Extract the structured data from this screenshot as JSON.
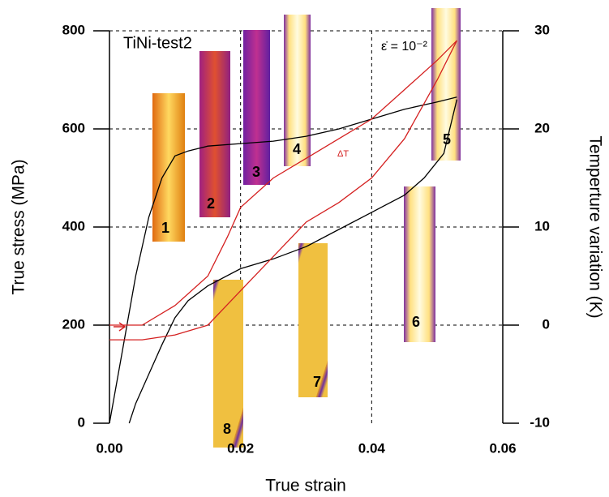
{
  "chart_data": {
    "type": "line",
    "annotations": [
      "TiNi-test2",
      "ε̇ = 10⁻²",
      "ΔT"
    ],
    "x_label": "True strain",
    "y_label": "True stress (MPa)",
    "y2_label": "Temperture variation (K)",
    "xlim": [
      0,
      0.06
    ],
    "xticks": [
      {
        "value": 0,
        "label": "0.00"
      },
      {
        "value": 0.02,
        "label": "0.02"
      },
      {
        "value": 0.04,
        "label": "0.04"
      },
      {
        "value": 0.06,
        "label": "0.06"
      }
    ],
    "ylim": [
      0,
      800
    ],
    "yticks": [
      0,
      200,
      400,
      600,
      800
    ],
    "y2lim": [
      -10,
      30
    ],
    "y2ticks": [
      -10,
      0,
      10,
      20,
      30
    ],
    "grid": true,
    "insets": [
      "1",
      "2",
      "3",
      "4",
      "5",
      "6",
      "7",
      "8"
    ],
    "series": [
      {
        "color": "#000000",
        "x": [
          0,
          0.002,
          0.004,
          0.006,
          0.008,
          0.01,
          0.012,
          0.015,
          0.02,
          0.025,
          0.03,
          0.035,
          0.04,
          0.045,
          0.05,
          0.053
        ],
        "values": [
          0,
          150,
          300,
          420,
          500,
          545,
          555,
          565,
          570,
          575,
          585,
          600,
          620,
          640,
          655,
          665
        ]
      },
      {
        "color": "#000000",
        "x": [
          0.053,
          0.051,
          0.048,
          0.045,
          0.04,
          0.035,
          0.03,
          0.025,
          0.02,
          0.015,
          0.012,
          0.01,
          0.008,
          0.006,
          0.004,
          0.003
        ],
        "values": [
          660,
          550,
          500,
          465,
          430,
          395,
          360,
          335,
          315,
          280,
          250,
          215,
          160,
          100,
          40,
          0
        ]
      },
      {
        "color": "#d42020",
        "axis": "y2",
        "x": [
          0,
          0.005,
          0.01,
          0.015,
          0.018,
          0.02,
          0.025,
          0.03,
          0.035,
          0.04,
          0.045,
          0.05,
          0.053
        ],
        "values": [
          0,
          0,
          2,
          5,
          9,
          12,
          15,
          17,
          19,
          21,
          24,
          27,
          29
        ]
      },
      {
        "color": "#d42020",
        "axis": "y2",
        "x": [
          0.053,
          0.05,
          0.045,
          0.04,
          0.035,
          0.03,
          0.025,
          0.02,
          0.015,
          0.01,
          0.005,
          0
        ],
        "values": [
          29,
          25,
          19,
          15,
          12.5,
          10.5,
          7,
          3.5,
          0,
          -1,
          -1.5,
          -1.5
        ]
      }
    ]
  }
}
